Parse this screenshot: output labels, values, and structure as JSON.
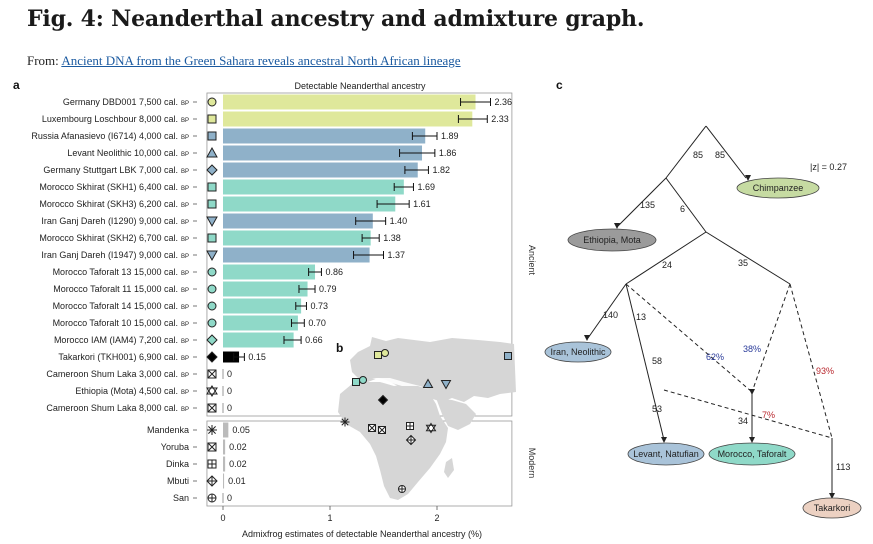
{
  "figure": {
    "title": "Fig. 4: Neanderthal ancestry and admixture graph.",
    "from_prefix": "From: ",
    "source_link": "Ancient DNA from the Green Sahara reveals ancestral North African lineage"
  },
  "panels": {
    "a": "a",
    "b": "b",
    "c": "c"
  },
  "chart_data": {
    "type": "bar",
    "title": "Detectable Neanderthal ancestry",
    "xlabel": "Admixfrog estimates of detectable Neanderthal ancestry (%)",
    "xlim": [
      -0.15,
      2.7
    ],
    "xticks": [
      0,
      1,
      2
    ],
    "groups": {
      "ancient": "Ancient",
      "modern": "Modern"
    },
    "samples": [
      {
        "label": "Germany DBD001 7,500 cal.",
        "bp": "BP",
        "value": 2.36,
        "value_label": "2.36",
        "err": [
          2.22,
          2.5
        ],
        "color": "#dfe89b",
        "marker": "circle",
        "marker_fill": "#dfe89b",
        "group": "ancient"
      },
      {
        "label": "Luxembourg Loschbour 8,000 cal.",
        "bp": "BP",
        "value": 2.33,
        "value_label": "2.33",
        "err": [
          2.2,
          2.47
        ],
        "color": "#dfe89b",
        "marker": "square",
        "marker_fill": "#dfe89b",
        "group": "ancient"
      },
      {
        "label": "Russia Afanasievo (I6714) 4,000 cal.",
        "bp": "BP",
        "value": 1.89,
        "value_label": "1.89",
        "err": [
          1.77,
          2.0
        ],
        "color": "#8fb1c9",
        "marker": "square",
        "marker_fill": "#8fb1c9",
        "group": "ancient"
      },
      {
        "label": "Levant Neolithic 10,000 cal.",
        "bp": "BP",
        "value": 1.86,
        "value_label": "1.86",
        "err": [
          1.65,
          1.98
        ],
        "color": "#8fb1c9",
        "marker": "triangle",
        "marker_fill": "#8fb1c9",
        "group": "ancient"
      },
      {
        "label": "Germany Stuttgart LBK 7,000 cal.",
        "bp": "BP",
        "value": 1.82,
        "value_label": "1.82",
        "err": [
          1.7,
          1.92
        ],
        "color": "#8fb1c9",
        "marker": "diamond",
        "marker_fill": "#8fb1c9",
        "group": "ancient"
      },
      {
        "label": "Morocco Skhirat (SKH1) 6,400 cal.",
        "bp": "BP",
        "value": 1.69,
        "value_label": "1.69",
        "err": [
          1.6,
          1.78
        ],
        "color": "#8fd9c8",
        "marker": "square",
        "marker_fill": "#8fd9c8",
        "group": "ancient"
      },
      {
        "label": "Morocco Skhirat (SKH3) 6,200 cal.",
        "bp": "BP",
        "value": 1.61,
        "value_label": "1.61",
        "err": [
          1.44,
          1.74
        ],
        "color": "#8fd9c8",
        "marker": "square",
        "marker_fill": "#8fd9c8",
        "group": "ancient"
      },
      {
        "label": "Iran Ganj Dareh (I1290) 9,000 cal.",
        "bp": "BP",
        "value": 1.4,
        "value_label": "1.40",
        "err": [
          1.24,
          1.52
        ],
        "color": "#8fb1c9",
        "marker": "triangle-down",
        "marker_fill": "#8fb1c9",
        "group": "ancient"
      },
      {
        "label": "Morocco Skhirat (SKH2) 6,700 cal.",
        "bp": "BP",
        "value": 1.38,
        "value_label": "1.38",
        "err": [
          1.3,
          1.46
        ],
        "color": "#8fd9c8",
        "marker": "square",
        "marker_fill": "#8fd9c8",
        "group": "ancient"
      },
      {
        "label": "Iran Ganj Dareh (I1947) 9,000 cal.",
        "bp": "BP",
        "value": 1.37,
        "value_label": "1.37",
        "err": [
          1.22,
          1.5
        ],
        "color": "#8fb1c9",
        "marker": "triangle-down",
        "marker_fill": "#8fb1c9",
        "group": "ancient"
      },
      {
        "label": "Morocco Taforalt 13 15,000 cal.",
        "bp": "BP",
        "value": 0.86,
        "value_label": "0.86",
        "err": [
          0.8,
          0.92
        ],
        "color": "#8fd9c8",
        "marker": "circle",
        "marker_fill": "#8fd9c8",
        "group": "ancient"
      },
      {
        "label": "Morocco Taforalt 11 15,000 cal.",
        "bp": "BP",
        "value": 0.79,
        "value_label": "0.79",
        "err": [
          0.71,
          0.86
        ],
        "color": "#8fd9c8",
        "marker": "circle",
        "marker_fill": "#8fd9c8",
        "group": "ancient"
      },
      {
        "label": "Morocco Taforalt 14 15,000 cal.",
        "bp": "BP",
        "value": 0.73,
        "value_label": "0.73",
        "err": [
          0.68,
          0.78
        ],
        "color": "#8fd9c8",
        "marker": "circle",
        "marker_fill": "#8fd9c8",
        "group": "ancient"
      },
      {
        "label": "Morocco Taforalt 10 15,000 cal.",
        "bp": "BP",
        "value": 0.7,
        "value_label": "0.70",
        "err": [
          0.64,
          0.76
        ],
        "color": "#8fd9c8",
        "marker": "circle",
        "marker_fill": "#8fd9c8",
        "group": "ancient"
      },
      {
        "label": "Morocco IAM (IAM4) 7,200 cal.",
        "bp": "BP",
        "value": 0.66,
        "value_label": "0.66",
        "err": [
          0.57,
          0.73
        ],
        "color": "#8fd9c8",
        "marker": "diamond",
        "marker_fill": "#8fd9c8",
        "group": "ancient"
      },
      {
        "label": "Takarkori (TKH001) 6,900 cal.",
        "bp": "BP",
        "value": 0.15,
        "value_label": "0.15",
        "err": [
          0.1,
          0.2
        ],
        "color": "#000000",
        "marker": "diamond",
        "marker_fill": "#000000",
        "group": "ancient"
      },
      {
        "label": "Cameroon Shum Laka 3,000 cal.",
        "bp": "BP",
        "value": 0,
        "value_label": "0",
        "color": "#bbbbbb",
        "marker": "square-x",
        "marker_fill": "#ffffff",
        "group": "ancient"
      },
      {
        "label": "Ethiopia (Mota) 4,500 cal.",
        "bp": "BP",
        "value": 0,
        "value_label": "0",
        "color": "#bbbbbb",
        "marker": "star-hex",
        "marker_fill": "#ffffff",
        "group": "ancient"
      },
      {
        "label": "Cameroon Shum Laka 8,000 cal.",
        "bp": "BP",
        "value": 0,
        "value_label": "0",
        "color": "#bbbbbb",
        "marker": "square-x",
        "marker_fill": "#ffffff",
        "group": "ancient"
      },
      {
        "label": "Mandenka",
        "bp": "",
        "value": 0.05,
        "value_label": "0.05",
        "color": "#bbbbbb",
        "marker": "asterisk",
        "marker_fill": "#ffffff",
        "group": "modern"
      },
      {
        "label": "Yoruba",
        "bp": "",
        "value": 0.02,
        "value_label": "0.02",
        "color": "#bbbbbb",
        "marker": "square-x",
        "marker_fill": "#ffffff",
        "group": "modern"
      },
      {
        "label": "Dinka",
        "bp": "",
        "value": 0.02,
        "value_label": "0.02",
        "color": "#bbbbbb",
        "marker": "square-plus",
        "marker_fill": "#ffffff",
        "group": "modern"
      },
      {
        "label": "Mbuti",
        "bp": "",
        "value": 0.01,
        "value_label": "0.01",
        "color": "#bbbbbb",
        "marker": "diamond-plus",
        "marker_fill": "#ffffff",
        "group": "modern"
      },
      {
        "label": "San",
        "bp": "",
        "value": 0,
        "value_label": "0",
        "color": "#bbbbbb",
        "marker": "circle-plus",
        "marker_fill": "#ffffff",
        "group": "modern"
      }
    ]
  },
  "map_markers": [
    {
      "marker": "circle",
      "color": "#dfe89b"
    },
    {
      "marker": "square",
      "color": "#dfe89b"
    },
    {
      "marker": "square",
      "color": "#8fb1c9"
    },
    {
      "marker": "square",
      "color": "#8fd9c8"
    },
    {
      "marker": "circle",
      "color": "#8fd9c8"
    },
    {
      "marker": "triangle",
      "color": "#8fb1c9"
    },
    {
      "marker": "triangle-down",
      "color": "#8fb1c9"
    },
    {
      "marker": "diamond",
      "color": "#000000"
    },
    {
      "marker": "asterisk",
      "color": "#ffffff"
    },
    {
      "marker": "square-x",
      "color": "#ffffff"
    },
    {
      "marker": "square-x",
      "color": "#ffffff"
    },
    {
      "marker": "square-plus",
      "color": "#ffffff"
    },
    {
      "marker": "star-hex",
      "color": "#ffffff"
    },
    {
      "marker": "diamond-plus",
      "color": "#ffffff"
    },
    {
      "marker": "circle-plus",
      "color": "#ffffff"
    }
  ],
  "admixture_graph": {
    "fit": "|z| = 0.27",
    "nodes": [
      {
        "id": "chimp",
        "label": "Chimpanzee",
        "color": "#c6dba2"
      },
      {
        "id": "mota",
        "label": "Ethiopia, Mota",
        "color": "#9b9b9b"
      },
      {
        "id": "iran",
        "label": "Iran, Neolithic",
        "color": "#a9c3d9"
      },
      {
        "id": "levant",
        "label": "Levant, Natufian",
        "color": "#a9c3d9"
      },
      {
        "id": "taforalt",
        "label": "Morocco, Taforalt",
        "color": "#8fd9c8"
      },
      {
        "id": "takarkori",
        "label": "Takarkori",
        "color": "#ecd1c2"
      }
    ],
    "edge_labels": [
      "85",
      "85",
      "135",
      "6",
      "24",
      "35",
      "140",
      "13",
      "58",
      "53",
      "34",
      "113"
    ],
    "admix_labels": [
      {
        "text": "62%",
        "color": "#2a3b9a"
      },
      {
        "text": "38%",
        "color": "#2a3b9a"
      },
      {
        "text": "93%",
        "color": "#b8272d"
      },
      {
        "text": "7%",
        "color": "#b8272d"
      }
    ]
  }
}
